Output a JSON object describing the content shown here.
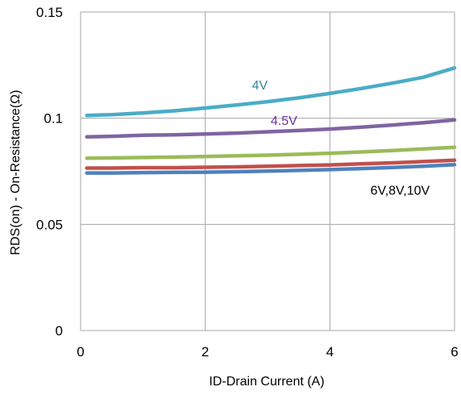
{
  "chart_data": {
    "type": "line",
    "xlabel": "ID-Drain Current (A)",
    "ylabel": "RDS(on) - On-Resistance(Ω)",
    "xlim": [
      0,
      6
    ],
    "ylim": [
      0,
      0.15
    ],
    "x_ticks": [
      "0",
      "2",
      "4",
      "6"
    ],
    "y_ticks": [
      "0",
      "0.05",
      "0.1",
      "0.15"
    ],
    "grid": true,
    "series": [
      {
        "name": "4V",
        "color": "#4BACC6",
        "label_color": "#31859C",
        "x": [
          0.1,
          0.5,
          1,
          1.5,
          2,
          2.5,
          3,
          3.5,
          4,
          4.5,
          5,
          5.5,
          6
        ],
        "y": [
          0.1013,
          0.1017,
          0.1025,
          0.1035,
          0.1048,
          0.1062,
          0.1078,
          0.1096,
          0.1117,
          0.114,
          0.1165,
          0.1193,
          0.1237
        ]
      },
      {
        "name": "4.5V",
        "color": "#8064A2",
        "label_color": "#7030A0",
        "x": [
          0.1,
          0.5,
          1,
          1.5,
          2,
          2.5,
          3,
          3.5,
          4,
          4.5,
          5,
          5.5,
          6
        ],
        "y": [
          0.0912,
          0.0915,
          0.092,
          0.0922,
          0.0926,
          0.093,
          0.0936,
          0.0942,
          0.0949,
          0.0958,
          0.0968,
          0.0979,
          0.0992
        ]
      },
      {
        "name": "",
        "color": "#9BBB59",
        "x": [
          0.1,
          0.5,
          1,
          1.5,
          2,
          2.5,
          3,
          3.5,
          4,
          4.5,
          5,
          5.5,
          6
        ],
        "y": [
          0.0812,
          0.0813,
          0.0815,
          0.0817,
          0.082,
          0.0823,
          0.0826,
          0.083,
          0.0835,
          0.0841,
          0.0848,
          0.0855,
          0.0863
        ]
      },
      {
        "name": "",
        "color": "#C0504D",
        "x": [
          0.1,
          0.5,
          1,
          1.5,
          2,
          2.5,
          3,
          3.5,
          4,
          4.5,
          5,
          5.5,
          6
        ],
        "y": [
          0.0765,
          0.0765,
          0.0767,
          0.0767,
          0.0769,
          0.0771,
          0.0774,
          0.0777,
          0.078,
          0.0785,
          0.079,
          0.0796,
          0.0802
        ]
      },
      {
        "name": "",
        "color": "#4F81BD",
        "x": [
          0.1,
          0.5,
          1,
          1.5,
          2,
          2.5,
          3,
          3.5,
          4,
          4.5,
          5,
          5.5,
          6
        ],
        "y": [
          0.0742,
          0.0742,
          0.0744,
          0.0745,
          0.0746,
          0.0748,
          0.0751,
          0.0754,
          0.0758,
          0.0763,
          0.0768,
          0.0774,
          0.0781
        ]
      }
    ],
    "annotations": [
      {
        "text": "4V",
        "x": 2.75,
        "y": 0.1135,
        "color": "#31859C"
      },
      {
        "text": "4.5V",
        "x": 3.05,
        "y": 0.0968,
        "color": "#7030A0"
      },
      {
        "text": "6V,8V,10V",
        "x": 4.65,
        "y": 0.064,
        "color": "#000000"
      }
    ]
  }
}
